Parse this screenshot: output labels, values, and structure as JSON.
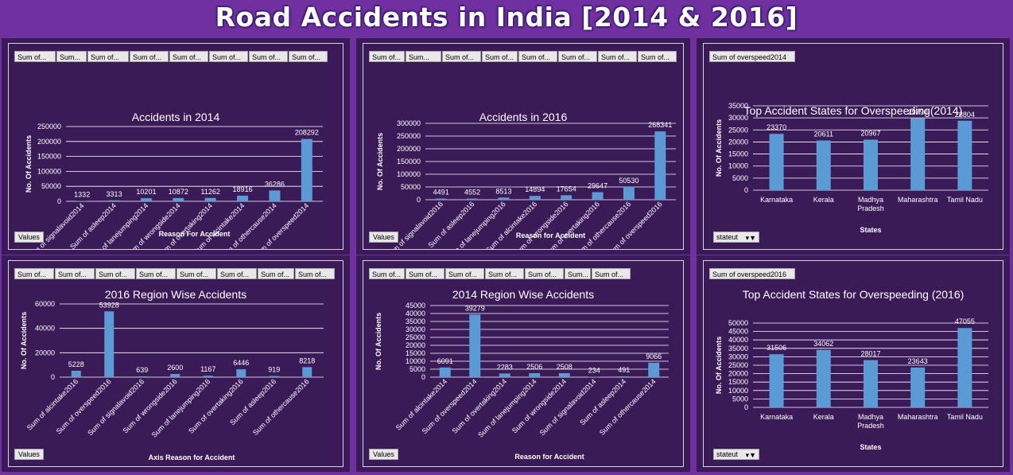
{
  "dashboard_title": "Road Accidents in India [2014 & 2016]",
  "colors": {
    "bar": "#5b9bd5",
    "panel": "#3b1a58",
    "background": "#7030a0",
    "grid": "#ffffff"
  },
  "values_button": "Values",
  "stateut_button": "stateut",
  "filter_icon": "filter-icon",
  "chart_data": [
    {
      "id": "c1",
      "type": "bar",
      "title": "Accidents in 2014",
      "xlabel": "Reason For Accident",
      "ylabel": "No. Of Accidents",
      "ylim": [
        0,
        250000
      ],
      "yticks": [
        "0",
        "50000",
        "100000",
        "150000",
        "200000",
        "250000"
      ],
      "buttons": [
        "Sum of...",
        "Sum...",
        "Sum of...",
        "Sum of...",
        "Sum of...",
        "Sum of...",
        "Sum of...",
        "Sum of..."
      ],
      "categories": [
        "Sum of signalavoid2014",
        "Sum of asleep2014",
        "Sum of lanejumping2014",
        "Sum of wrongside2014",
        "Sum of overtaking2014",
        "Sum of alcintake2014",
        "Sum of othercause2014",
        "Sum of overspeed2014"
      ],
      "values": [
        1332,
        3313,
        10201,
        10872,
        11262,
        18916,
        36286,
        208292
      ],
      "labels": [
        "1332",
        "3313",
        "10201",
        "10872",
        "11262",
        "18916",
        "36286",
        "208292"
      ]
    },
    {
      "id": "c2",
      "type": "bar",
      "title": "Accidents in 2016",
      "xlabel": "Reason for Accident",
      "ylabel": "No. Of Accidents",
      "ylim": [
        0,
        300000
      ],
      "yticks": [
        "0",
        "50000",
        "100000",
        "150000",
        "200000",
        "250000",
        "300000"
      ],
      "buttons": [
        "Sum of...",
        "Sum...",
        "Sum of...",
        "Sum of...",
        "Sum of...",
        "Sum of...",
        "Sum of...",
        "Sum of..."
      ],
      "categories": [
        "Sum of signalavoid2016",
        "Sum of asleep2016",
        "Sum of lanejumping2016",
        "Sum of alcintake2016",
        "Sum of wrongside2016",
        "Sum of overtaking2016",
        "Sum of othercause2016",
        "Sum of overspeed2016"
      ],
      "values": [
        4491,
        4552,
        8513,
        14894,
        17654,
        29647,
        50530,
        268341
      ],
      "labels": [
        "4491",
        "4552",
        "8513",
        "14894",
        "17654",
        "29647",
        "50530",
        "268341"
      ]
    },
    {
      "id": "c3",
      "type": "bar",
      "title": "Top Accident States for Overspeeding(2014)",
      "xlabel": "States",
      "ylabel": "No. Of Accidents",
      "ylim": [
        0,
        35000
      ],
      "yticks": [
        "0",
        "5000",
        "10000",
        "15000",
        "20000",
        "25000",
        "30000",
        "35000"
      ],
      "buttons": [
        "Sum of overspeed2014"
      ],
      "categories": [
        "Karnataka",
        "Kerala",
        "Madhya Pradesh",
        "Maharashtra",
        "Tamil Nadu"
      ],
      "values": [
        23370,
        20611,
        20967,
        29790,
        28804
      ],
      "labels": [
        "23370",
        "20611",
        "20967",
        "29790",
        "28804"
      ]
    },
    {
      "id": "c4",
      "type": "bar",
      "title": "2016 Region Wise Accidents",
      "xlabel": "Axis Reason for Accident",
      "ylabel": "No. Of Accidents",
      "ylim": [
        0,
        60000
      ],
      "yticks": [
        "0",
        "20000",
        "40000",
        "60000"
      ],
      "buttons": [
        "Sum of...",
        "Sum of...",
        "Sum of...",
        "Sum of...",
        "Sum of...",
        "Sum of...",
        "Sum of...",
        "Sum of..."
      ],
      "categories": [
        "Sum of alcintake2016",
        "Sum of overspeed2016",
        "Sum of signalavoid2016",
        "Sum of wrongside2016",
        "Sum of lanejumping2016",
        "Sum of overtaking2016",
        "Sum of asleep2016",
        "Sum of othercause2016"
      ],
      "values": [
        5228,
        53928,
        639,
        2600,
        1167,
        6446,
        919,
        8218
      ],
      "labels": [
        "5228",
        "53928",
        "639",
        "2600",
        "1167",
        "6446",
        "919",
        "8218"
      ]
    },
    {
      "id": "c5",
      "type": "bar",
      "title": "2014 Region Wise Accidents",
      "xlabel": "Reason for Accident",
      "ylabel": "No. Of Accidents",
      "ylim": [
        0,
        45000
      ],
      "yticks": [
        "0",
        "5000",
        "10000",
        "15000",
        "20000",
        "25000",
        "30000",
        "35000",
        "40000",
        "45000"
      ],
      "buttons": [
        "Sum of...",
        "Sum of...",
        "Sum of...",
        "Sum of...",
        "Sum of...",
        "Sum...",
        "Sum of..."
      ],
      "categories": [
        "Sum of alcintake2014",
        "Sum of overspeed2014",
        "Sum of overtaking2014",
        "Sum of lanejumping2014",
        "Sum of wrongside2014",
        "Sum of signalavoid2014",
        "Sum of asleep2014",
        "Sum of othercause2014"
      ],
      "values": [
        6091,
        39279,
        2283,
        2506,
        2508,
        234,
        491,
        9066
      ],
      "labels": [
        "6091",
        "39279",
        "2283",
        "2506",
        "2508",
        "234",
        "491",
        "9066"
      ]
    },
    {
      "id": "c6",
      "type": "bar",
      "title": "Top Accident States for Overspeeding (2016)",
      "xlabel": "States",
      "ylabel": "No. Of Accidents",
      "ylim": [
        0,
        50000
      ],
      "yticks": [
        "0",
        "5000",
        "10000",
        "15000",
        "20000",
        "25000",
        "30000",
        "35000",
        "40000",
        "45000",
        "50000"
      ],
      "buttons": [
        "Sum of overspeed2016"
      ],
      "categories": [
        "Karnataka",
        "Kerala",
        "Madhya Pradesh",
        "Maharashtra",
        "Tamil Nadu"
      ],
      "values": [
        31506,
        34062,
        28017,
        23643,
        47055
      ],
      "labels": [
        "31506",
        "34062",
        "28017",
        "23643",
        "47055"
      ]
    }
  ]
}
